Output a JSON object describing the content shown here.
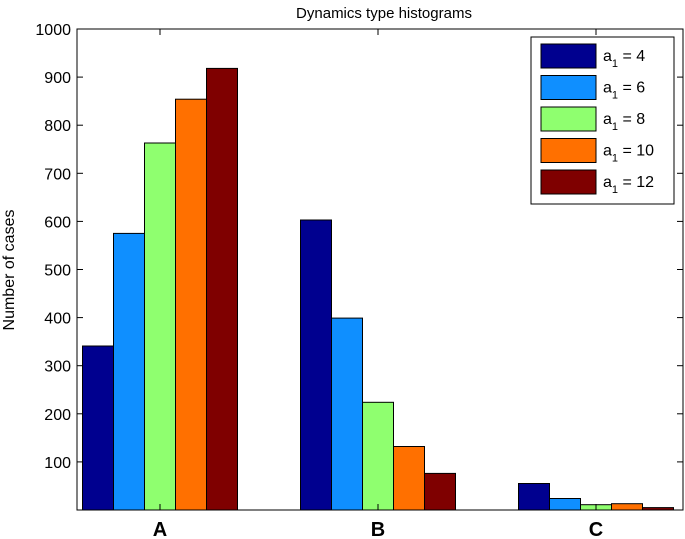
{
  "chart_data": {
    "type": "bar",
    "title": "Dynamics type histograms",
    "xlabel": "",
    "ylabel": "Number of cases",
    "categories": [
      "A",
      "B",
      "C"
    ],
    "ylim": [
      0,
      1000
    ],
    "yticks": [
      "100",
      "200",
      "300",
      "400",
      "500",
      "600",
      "700",
      "800",
      "900",
      "1000"
    ],
    "legend_position": "top-right",
    "series": [
      {
        "name": "a",
        "sub": "1",
        "suffix": " = 4",
        "color": "#00008f",
        "values": [
          341,
          603,
          55
        ]
      },
      {
        "name": "a",
        "sub": "1",
        "suffix": " = 6",
        "color": "#0f8fff",
        "values": [
          575,
          399,
          24
        ]
      },
      {
        "name": "a",
        "sub": "1",
        "suffix": " = 8",
        "color": "#8fff6f",
        "values": [
          763,
          224,
          11
        ]
      },
      {
        "name": "a",
        "sub": "1",
        "suffix": " = 10",
        "color": "#ff7000",
        "values": [
          854,
          132,
          13
        ]
      },
      {
        "name": "a",
        "sub": "1",
        "suffix": " = 12",
        "color": "#7f0000",
        "values": [
          918,
          76,
          5
        ]
      }
    ]
  }
}
